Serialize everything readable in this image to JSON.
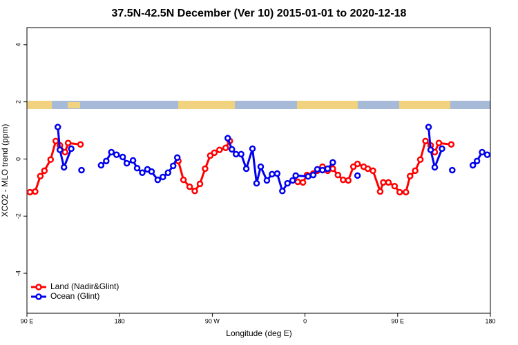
{
  "chart_data": {
    "type": "line",
    "title": "37.5N-42.5N December (Ver 10)   2015-01-01 to 2020-12-18",
    "x_label": "Longitude (deg E)",
    "y_label": "XCO2 - MLO trend (ppm)",
    "xlim": [
      90,
      540
    ],
    "xticks": [
      {
        "value": 90,
        "label": "90 E"
      },
      {
        "value": 180,
        "label": "180"
      },
      {
        "value": 270,
        "label": "90 W"
      },
      {
        "value": 360,
        "label": "0"
      },
      {
        "value": 450,
        "label": "90 E"
      },
      {
        "value": 540,
        "label": "180"
      }
    ],
    "ylim": [
      -5.4,
      4.6
    ],
    "yticks": [
      -4,
      -2,
      0,
      2,
      4
    ],
    "legend": "bottom-left",
    "series": [
      {
        "name": "Land (Nadir&Glint)",
        "color": "#ff0000",
        "x": [
          93,
          98,
          103,
          107,
          113,
          118,
          122,
          127,
          130,
          142,
          null,
          237,
          242,
          248,
          253,
          258,
          263,
          268,
          272,
          277,
          283,
          287,
          null,
          353,
          358,
          362,
          368,
          372,
          377,
          382,
          387,
          392,
          397,
          402,
          407,
          411,
          417,
          421,
          426,
          433,
          436,
          441,
          447,
          452,
          458,
          462,
          467,
          472,
          477,
          482,
          486,
          490,
          502
        ],
        "values": [
          -1.16,
          -1.14,
          -0.6,
          -0.41,
          -0.02,
          0.63,
          0.48,
          0.24,
          0.56,
          0.51,
          null,
          -0.07,
          -0.73,
          -0.97,
          -1.12,
          -0.87,
          -0.34,
          0.12,
          0.22,
          0.32,
          0.39,
          0.63,
          null,
          -0.8,
          -0.82,
          -0.56,
          -0.51,
          -0.41,
          -0.27,
          -0.41,
          -0.34,
          -0.56,
          -0.73,
          -0.75,
          -0.27,
          -0.17,
          -0.27,
          -0.34,
          -0.41,
          -1.14,
          -0.82,
          -0.82,
          -0.95,
          -1.16,
          -1.16,
          -0.6,
          -0.41,
          -0.02,
          0.63,
          0.48,
          0.24,
          0.56,
          0.51
        ]
      },
      {
        "name": "Ocean (Glint)",
        "color": "#0000ee",
        "x": [
          120,
          122,
          126,
          133,
          null,
          143,
          null,
          162,
          167,
          172,
          177,
          183,
          187,
          193,
          197,
          202,
          207,
          211,
          217,
          222,
          227,
          232,
          236,
          null,
          285,
          289,
          293,
          298,
          303,
          309,
          313,
          317,
          323,
          328,
          333,
          338,
          343,
          348,
          351,
          363,
          368,
          372,
          377,
          382,
          387,
          null,
          411,
          null,
          480,
          482,
          486,
          493,
          null,
          503,
          null,
          523,
          527,
          532,
          537
        ],
        "values": [
          1.12,
          0.32,
          -0.29,
          0.36,
          null,
          -0.39,
          null,
          -0.22,
          -0.07,
          0.24,
          0.15,
          0.07,
          -0.15,
          -0.05,
          -0.32,
          -0.48,
          -0.36,
          -0.44,
          -0.73,
          -0.63,
          -0.48,
          -0.24,
          0.05,
          null,
          0.73,
          0.34,
          0.17,
          0.17,
          -0.34,
          0.36,
          -0.85,
          -0.27,
          -0.75,
          -0.53,
          -0.51,
          -1.12,
          -0.85,
          -0.75,
          -0.58,
          -0.61,
          -0.56,
          -0.36,
          -0.39,
          -0.34,
          -0.12,
          null,
          -0.58,
          null,
          1.12,
          0.32,
          -0.29,
          0.36,
          null,
          -0.39,
          null,
          -0.22,
          -0.07,
          0.24,
          0.15
        ]
      }
    ]
  }
}
